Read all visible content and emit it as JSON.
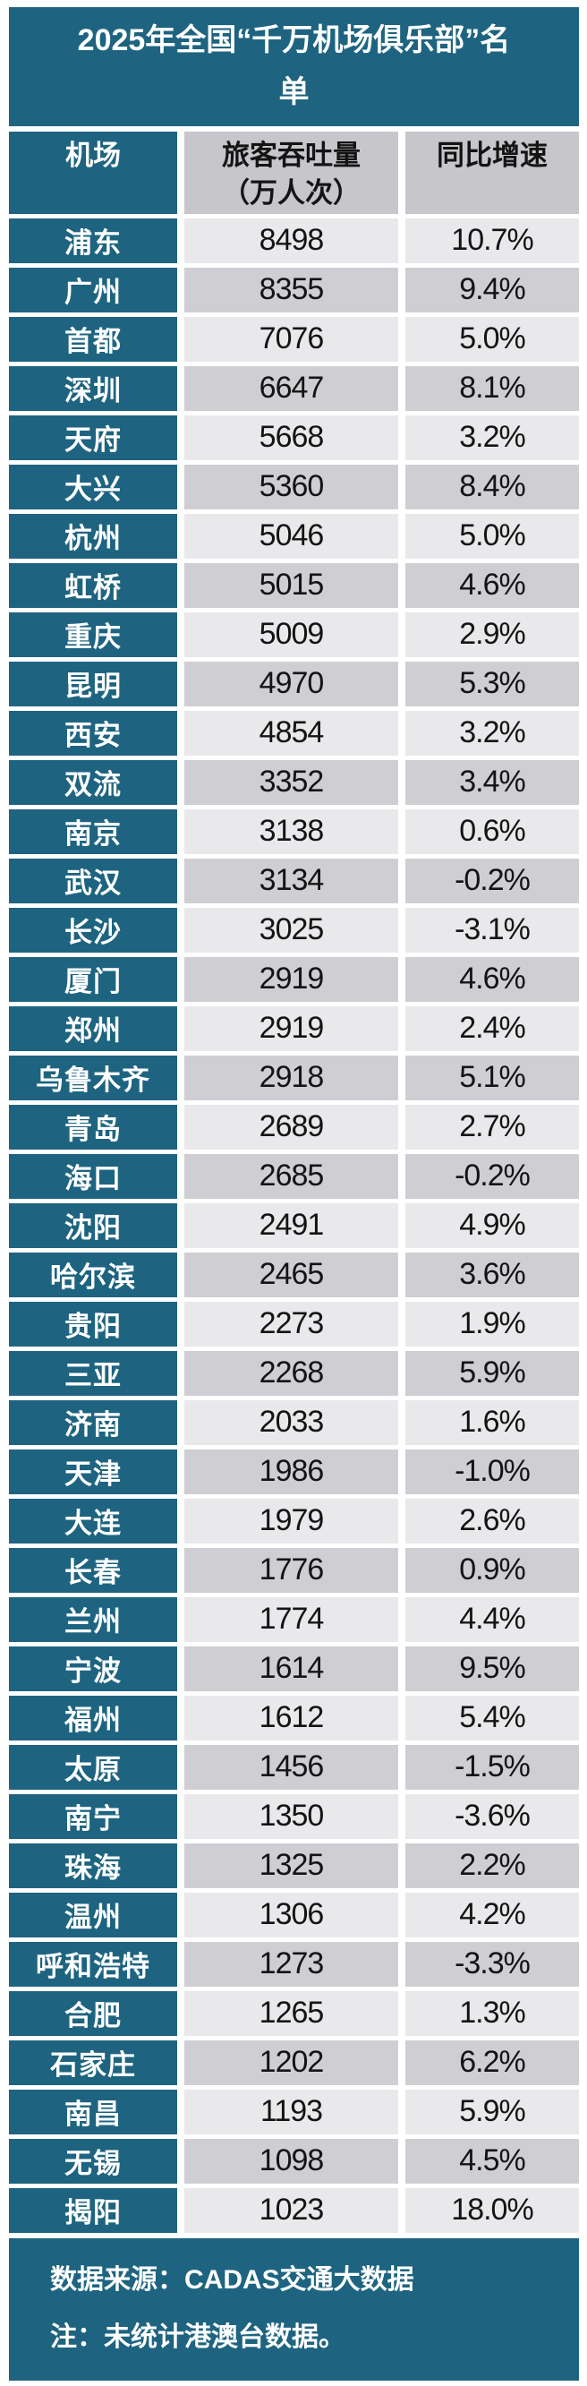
{
  "title": "2025年全国“千万机场俱乐部”名单",
  "header": {
    "airport": "机场",
    "throughput_line1": "旅客吞吐量",
    "throughput_line2": "（万人次）",
    "growth": "同比增速"
  },
  "footer": {
    "line1": "数据来源：CADAS交通大数据",
    "line2": "注：未统计港澳台数据。"
  },
  "colors": {
    "teal": "#1E6480",
    "header_gray": "#C7C7CB",
    "row_light": "#E9E9EC",
    "row_dark": "#CFCFD3"
  },
  "chart_data": {
    "type": "table",
    "title": "2025年全国“千万机场俱乐部”名单",
    "columns": [
      "机场",
      "旅客吞吐量（万人次）",
      "同比增速"
    ],
    "rows": [
      [
        "浦东",
        8498,
        "10.7%"
      ],
      [
        "广州",
        8355,
        "9.4%"
      ],
      [
        "首都",
        7076,
        "5.0%"
      ],
      [
        "深圳",
        6647,
        "8.1%"
      ],
      [
        "天府",
        5668,
        "3.2%"
      ],
      [
        "大兴",
        5360,
        "8.4%"
      ],
      [
        "杭州",
        5046,
        "5.0%"
      ],
      [
        "虹桥",
        5015,
        "4.6%"
      ],
      [
        "重庆",
        5009,
        "2.9%"
      ],
      [
        "昆明",
        4970,
        "5.3%"
      ],
      [
        "西安",
        4854,
        "3.2%"
      ],
      [
        "双流",
        3352,
        "3.4%"
      ],
      [
        "南京",
        3138,
        "0.6%"
      ],
      [
        "武汉",
        3134,
        "-0.2%"
      ],
      [
        "长沙",
        3025,
        "-3.1%"
      ],
      [
        "厦门",
        2919,
        "4.6%"
      ],
      [
        "郑州",
        2919,
        "2.4%"
      ],
      [
        "乌鲁木齐",
        2918,
        "5.1%"
      ],
      [
        "青岛",
        2689,
        "2.7%"
      ],
      [
        "海口",
        2685,
        "-0.2%"
      ],
      [
        "沈阳",
        2491,
        "4.9%"
      ],
      [
        "哈尔滨",
        2465,
        "3.6%"
      ],
      [
        "贵阳",
        2273,
        "1.9%"
      ],
      [
        "三亚",
        2268,
        "5.9%"
      ],
      [
        "济南",
        2033,
        "1.6%"
      ],
      [
        "天津",
        1986,
        "-1.0%"
      ],
      [
        "大连",
        1979,
        "2.6%"
      ],
      [
        "长春",
        1776,
        "0.9%"
      ],
      [
        "兰州",
        1774,
        "4.4%"
      ],
      [
        "宁波",
        1614,
        "9.5%"
      ],
      [
        "福州",
        1612,
        "5.4%"
      ],
      [
        "太原",
        1456,
        "-1.5%"
      ],
      [
        "南宁",
        1350,
        "-3.6%"
      ],
      [
        "珠海",
        1325,
        "2.2%"
      ],
      [
        "温州",
        1306,
        "4.2%"
      ],
      [
        "呼和浩特",
        1273,
        "-3.3%"
      ],
      [
        "合肥",
        1265,
        "1.3%"
      ],
      [
        "石家庄",
        1202,
        "6.2%"
      ],
      [
        "南昌",
        1193,
        "5.9%"
      ],
      [
        "无锡",
        1098,
        "4.5%"
      ],
      [
        "揭阳",
        1023,
        "18.0%"
      ]
    ],
    "source": "数据来源：CADAS交通大数据",
    "note": "注：未统计港澳台数据。",
    "layout_hints": {
      "first_column_style": "teal background, white bold text",
      "data_rows": "alternating light/dark gray, black text",
      "grid": "white gaps between cells"
    }
  }
}
